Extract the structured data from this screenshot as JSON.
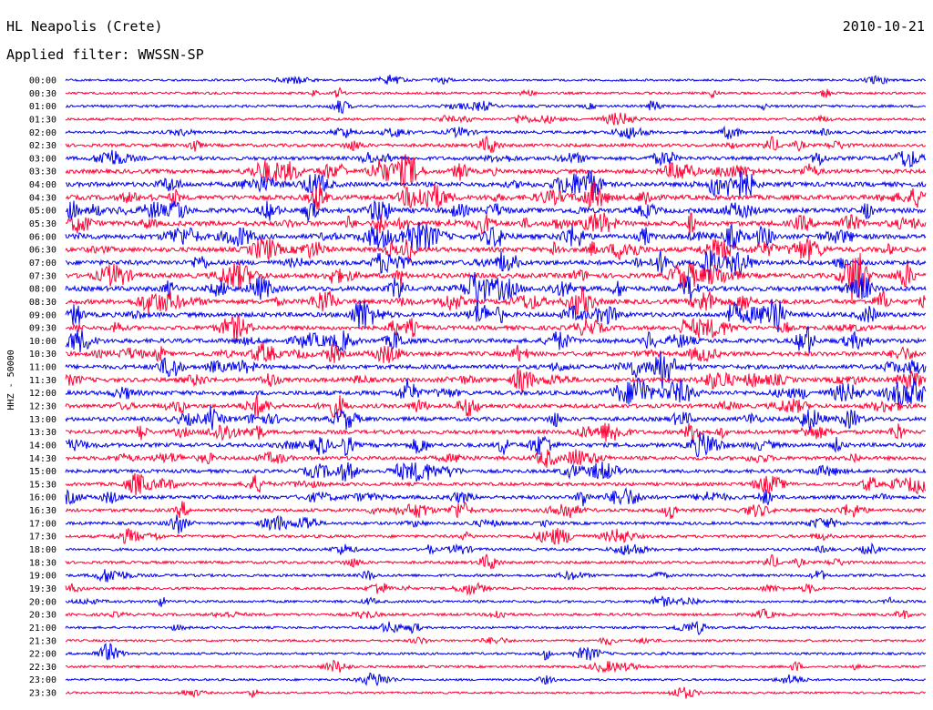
{
  "header": {
    "station": "HL Neapolis (Crete)",
    "filter": "Applied filter: WWSSN-SP",
    "date": "2010-10-21"
  },
  "chart_data": {
    "type": "line",
    "ylabel": "HHZ - 50000",
    "row_labels": [
      "00:00",
      "00:30",
      "01:00",
      "01:30",
      "02:00",
      "02:30",
      "03:00",
      "03:30",
      "04:00",
      "04:30",
      "05:00",
      "05:30",
      "06:00",
      "06:30",
      "07:00",
      "07:30",
      "08:00",
      "08:30",
      "09:00",
      "09:30",
      "10:00",
      "10:30",
      "11:00",
      "11:30",
      "12:00",
      "12:30",
      "13:00",
      "13:30",
      "14:00",
      "14:30",
      "15:00",
      "15:30",
      "16:00",
      "16:30",
      "17:00",
      "17:30",
      "18:00",
      "18:30",
      "19:00",
      "19:30",
      "20:00",
      "20:30",
      "21:00",
      "21:30",
      "22:00",
      "22:30",
      "23:00",
      "23:30"
    ],
    "activity": [
      0.15,
      0.2,
      0.25,
      0.25,
      0.35,
      0.45,
      0.6,
      0.75,
      0.85,
      0.9,
      0.95,
      0.95,
      0.95,
      0.9,
      0.9,
      0.9,
      0.95,
      0.9,
      0.85,
      0.75,
      0.8,
      0.8,
      0.75,
      0.75,
      0.8,
      0.7,
      0.7,
      0.65,
      0.7,
      0.6,
      0.55,
      0.5,
      0.6,
      0.5,
      0.4,
      0.35,
      0.3,
      0.3,
      0.3,
      0.25,
      0.25,
      0.3,
      0.2,
      0.15,
      0.2,
      0.2,
      0.15,
      0.1
    ],
    "colors": {
      "even": "#0000ee",
      "odd": "#ff0033"
    }
  }
}
